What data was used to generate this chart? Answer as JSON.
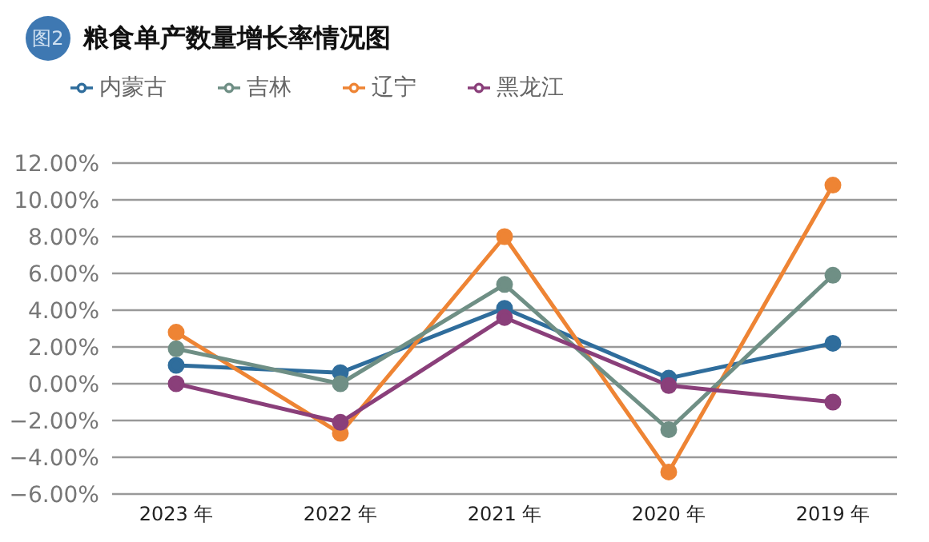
{
  "chart_data": {
    "type": "line",
    "title": "粮食单产数量增长率情况图",
    "annotations": [
      "图2"
    ],
    "categories": [
      "2023 年",
      "2022 年",
      "2021 年",
      "2020 年",
      "2019 年"
    ],
    "series": [
      {
        "name": "内蒙古",
        "color": "#2f6d9c",
        "values": [
          1.0,
          0.6,
          4.1,
          0.3,
          2.2
        ]
      },
      {
        "name": "辽宁",
        "color": "#ee8434",
        "values": [
          2.8,
          -2.7,
          8.0,
          -4.8,
          10.8
        ]
      },
      {
        "name": "吉林",
        "color": "#6f8f85",
        "values": [
          1.9,
          0.0,
          5.4,
          -2.5,
          5.9
        ]
      },
      {
        "name": "黑龙江",
        "color": "#8a3f7a",
        "values": [
          0.0,
          -2.1,
          3.6,
          -0.1,
          -1.0
        ]
      }
    ],
    "ylim": [
      -6,
      12
    ],
    "yticks": [
      {
        "value": -6,
        "label": "−6.00%"
      },
      {
        "value": -4,
        "label": "−4.00%"
      },
      {
        "value": -2,
        "label": "−2.00%"
      },
      {
        "value": 0,
        "label": "0.00%"
      },
      {
        "value": 2,
        "label": "2.00%"
      },
      {
        "value": 4,
        "label": "4.00%"
      },
      {
        "value": 6,
        "label": "6.00%"
      },
      {
        "value": 8,
        "label": "8.00%"
      },
      {
        "value": 10,
        "label": "10.00%"
      },
      {
        "value": 12,
        "label": "12.00%"
      }
    ],
    "grid": "y",
    "legend": "top left",
    "marker": "circle",
    "line_style": "solid"
  }
}
